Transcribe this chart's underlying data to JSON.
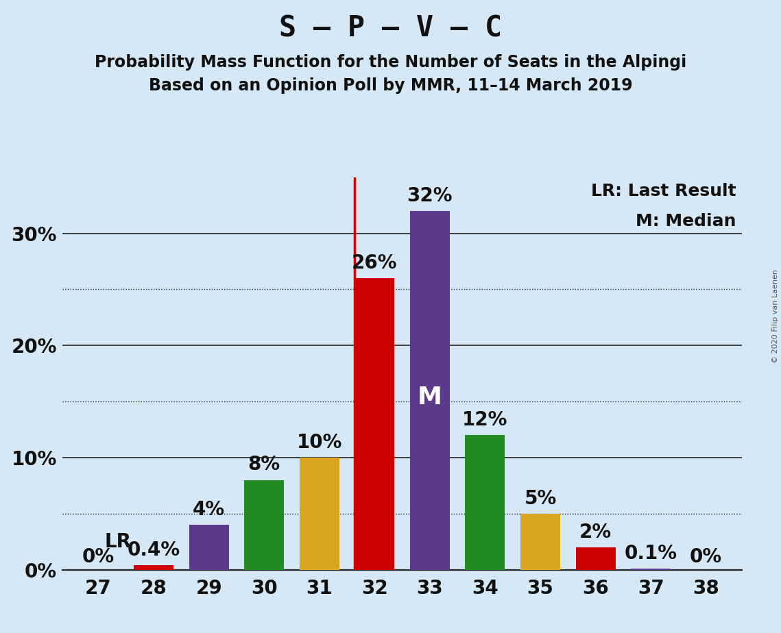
{
  "title_main": "S – P – V – C",
  "title_sub1": "Probability Mass Function for the Number of Seats in the Alpingi",
  "title_sub2": "Based on an Opinion Poll by MMR, 11–14 March 2019",
  "copyright": "© 2020 Filip van Laenen",
  "seats": [
    27,
    28,
    29,
    30,
    31,
    32,
    33,
    34,
    35,
    36,
    37,
    38
  ],
  "probabilities": [
    0.0,
    0.4,
    4.0,
    8.0,
    10.0,
    26.0,
    32.0,
    12.0,
    5.0,
    2.0,
    0.1,
    0.0
  ],
  "bar_colors": [
    "#cc0000",
    "#cc0000",
    "#5b3a8c",
    "#228b22",
    "#daa520",
    "#cc0000",
    "#5b3a8c",
    "#228b22",
    "#daa520",
    "#cc0000",
    "#5b3a8c",
    "#228b22"
  ],
  "bar_labels": [
    "0%",
    "0.4%",
    "4%",
    "8%",
    "10%",
    "26%",
    "32%",
    "12%",
    "5%",
    "2%",
    "0.1%",
    "0%"
  ],
  "lr_seat": 28,
  "median_seat": 33,
  "vline_seat": 32,
  "background_color": "#d6e8f5",
  "plot_background_color": "#d6e8f5",
  "ylim": [
    0,
    35
  ],
  "ytick_labeled": [
    0,
    10,
    20,
    30
  ],
  "dotted_yticks": [
    5,
    15,
    25
  ],
  "solid_yticks": [
    10,
    20,
    30
  ],
  "legend_text1": "LR: Last Result",
  "legend_text2": "M: Median",
  "lr_label": "LR",
  "median_label": "M",
  "title_fontsize": 30,
  "subtitle_fontsize": 17,
  "tick_fontsize": 20,
  "bar_label_fontsize": 20,
  "legend_fontsize": 18,
  "vline_color": "#cc0000",
  "median_label_color": "#ffffff"
}
